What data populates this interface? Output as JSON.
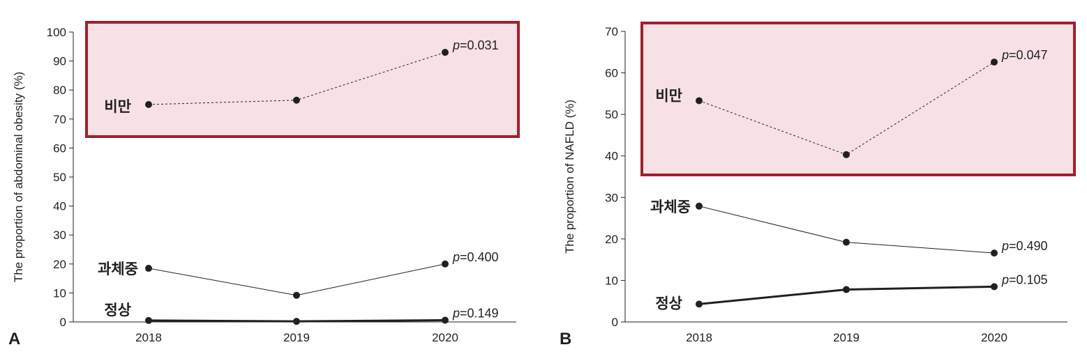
{
  "colors": {
    "ink": "#231f20",
    "highlight_fill": "#f7e1e4",
    "highlight_border": "#a31f2e"
  },
  "chart_data": [
    {
      "panel_label": "A",
      "type": "line",
      "ylabel": "The proportion of abdominal obesity (%)",
      "ylim": [
        0,
        100
      ],
      "yticks": [
        0,
        10,
        20,
        30,
        40,
        50,
        60,
        70,
        80,
        90,
        100
      ],
      "categories": [
        "2018",
        "2019",
        "2020"
      ],
      "series": [
        {
          "name": "비만",
          "values": [
            75,
            76.5,
            93
          ],
          "p": "=0.031",
          "style": "dotted",
          "highlighted": true
        },
        {
          "name": "과체중",
          "values": [
            18.5,
            9.2,
            20
          ],
          "p": "=0.400",
          "style": "thin"
        },
        {
          "name": "정상",
          "values": [
            0.5,
            0.2,
            0.6
          ],
          "p": "=0.149",
          "style": "thick"
        }
      ],
      "p_prefix": "p",
      "grid": false
    },
    {
      "panel_label": "B",
      "type": "line",
      "ylabel": "The proportion of NAFLD (%)",
      "ylim": [
        0,
        70
      ],
      "yticks": [
        0,
        10,
        20,
        30,
        40,
        50,
        60,
        70
      ],
      "categories": [
        "2018",
        "2019",
        "2020"
      ],
      "series": [
        {
          "name": "비만",
          "values": [
            53.3,
            40.3,
            62.6
          ],
          "p": "=0.047",
          "style": "dotted",
          "highlighted": true
        },
        {
          "name": "과체중",
          "values": [
            27.9,
            19.2,
            16.6
          ],
          "p": "=0.490",
          "style": "thin"
        },
        {
          "name": "정상",
          "values": [
            4.3,
            7.8,
            8.5
          ],
          "p": "=0.105",
          "style": "thick"
        }
      ],
      "p_prefix": "p",
      "grid": false
    }
  ]
}
